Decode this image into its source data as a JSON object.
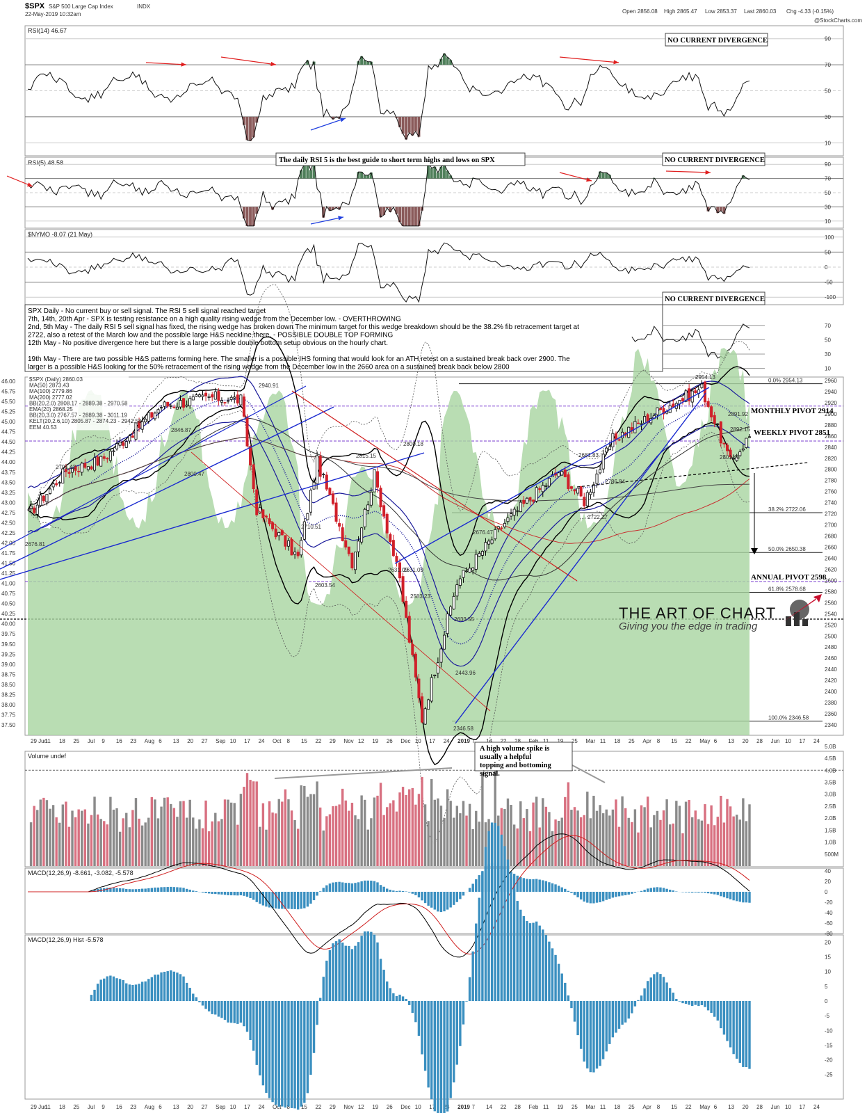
{
  "header": {
    "symbol": "$SPX",
    "name": "S&P 500 Large Cap Index",
    "exchange": "INDX",
    "datetime": "22-May-2019 10:32am",
    "open": "Open 2856.08",
    "high": "High 2865.47",
    "low": "Low 2853.37",
    "last": "Last 2860.03",
    "chg": "Chg -4.33 (-0.15%)",
    "watermark": "@StockCharts.com"
  },
  "date_axis": {
    "labels": [
      "29 Jun",
      "11",
      "18",
      "25",
      "Jul",
      "9",
      "16",
      "23",
      "Aug",
      "6",
      "13",
      "20",
      "27",
      "Sep",
      "10",
      "17",
      "24",
      "Oct",
      "8",
      "15",
      "22",
      "29",
      "Nov",
      "12",
      "19",
      "26",
      "Dec",
      "10",
      "17",
      "24",
      "2019",
      "7",
      "14",
      "22",
      "28",
      "Feb",
      "11",
      "19",
      "25",
      "Mar",
      "11",
      "18",
      "25",
      "Apr",
      "8",
      "15",
      "22",
      "May",
      "6",
      "13",
      "20",
      "28",
      "Jun",
      "10",
      "17",
      "24"
    ]
  },
  "annotations": {
    "no_div_1": "NO CURRENT DIVERGENCE",
    "no_div_2": "NO CURRENT DIVERGENCE",
    "no_div_3": "NO CURRENT DIVERGENCE",
    "rsi5_guide": "The daily RSI 5 is the best guide to short term highs and lows on SPX",
    "monthly_pivot": "MONTHLY PIVOT 2914",
    "weekly_pivot": "WEEKLY PIVOT 2851",
    "annual_pivot": "ANNUAL PIVOT 2598",
    "volume_note": "A high volume spike is usually a helpful topping and bottoming signal.",
    "logo_title": "THE ART OF CHART",
    "logo_tag": "Giving you the edge in trading"
  },
  "commentary": [
    "SPX Daily - No current buy or sell signal. The RSI 5 sell signal reached target",
    "7th, 14th, 20th Apr - SPX is testing resistance on a high quality rising wedge from the December low. - OVERTHROWING",
    "2nd, 5th May - The daily RSI 5 sell signal has fixed, the rising wedge has broken down The minimum target for this wedge breakdown should be the 38.2% fib retracement target at",
    "2722, also a retest of the March low and the possible large H&S neckline there. - POSSIBLE DOUBLE TOP FORMING",
    "12th May - No positive divergence here but there is a large possible double bottom setup obvious on the hourly chart.",
    "",
    "19th May - There are two possible H&S patterns forming here. The smaller is a possible IHS forming that would look for an ATH retest on a sustained break back over 2900. The",
    "larger is a possible H&S looking for the 50% retracement of the rising wedge from the December low in the 2660 area on a sustained break back below 2800"
  ],
  "panels": {
    "rsi14": {
      "label": "RSI(14) 46.67",
      "ticks": [
        "90",
        "70",
        "50",
        "30",
        "10"
      ]
    },
    "rsi5": {
      "label": "RSI(5) 48.58",
      "ticks": [
        "90",
        "70",
        "50",
        "30",
        "10"
      ]
    },
    "nymo": {
      "label": "$NYMO -8.07 (21 May)",
      "ticks": [
        "100",
        "50",
        "0",
        "-50",
        "-100"
      ]
    },
    "rsi_inset": {
      "ticks": [
        "70",
        "50",
        "30",
        "10"
      ]
    },
    "price": {
      "legend": [
        "$SPX (Daily) 2860.03",
        "MA(50) 2873.43",
        "MA(100) 2779.86",
        "MA(200) 2777.02",
        "BB(20,2.0) 2808.17 - 2889.38 - 2970.58",
        "EMA(20) 2868.25",
        "BB(20,3.0) 2767.57 - 2889.38 - 3011.19",
        "KELT(20,2.6,10) 2805.87 - 2874.23 - 2942.58",
        "EEM 40.53"
      ],
      "right_ticks": [
        "2960",
        "2940",
        "2920",
        "2900",
        "2880",
        "2860",
        "2840",
        "2820",
        "2800",
        "2780",
        "2760",
        "2740",
        "2720",
        "2700",
        "2680",
        "2660",
        "2640",
        "2620",
        "2600",
        "2580",
        "2560",
        "2540",
        "2520",
        "2500",
        "2480",
        "2460",
        "2440",
        "2420",
        "2400",
        "2380",
        "2360",
        "2340"
      ],
      "left_ticks": [
        "46.00",
        "45.75",
        "45.50",
        "45.25",
        "45.00",
        "44.75",
        "44.50",
        "44.25",
        "44.00",
        "43.75",
        "43.50",
        "43.25",
        "43.00",
        "42.75",
        "42.50",
        "42.25",
        "42.00",
        "41.75",
        "41.50",
        "41.25",
        "41.00",
        "40.75",
        "40.50",
        "40.25",
        "40.00",
        "39.75",
        "39.50",
        "39.25",
        "39.00",
        "38.75",
        "38.50",
        "38.25",
        "38.00",
        "37.75",
        "37.50"
      ],
      "fib": [
        "0.0% 2954.13",
        "38.2% 2722.06",
        "50.0% 2650.38",
        "61.8% 2578.68",
        "100.0% 2346.58"
      ],
      "price_labels": [
        "2954.13",
        "2940.91",
        "2891.92",
        "2846.87",
        "2801.43",
        "2791.42",
        "2800.47",
        "2631.09",
        "2710.51",
        "2603.54",
        "2583.23",
        "2443.96",
        "2346.58",
        "2633.55",
        "2631.09",
        "2800.18",
        "2815.15",
        "2676.47",
        "2722.27",
        "2892.15",
        "2786.84",
        "2681.83",
        "2676.81"
      ]
    },
    "volume": {
      "label": "Volume undef",
      "ticks": [
        "5.0B",
        "4.5B",
        "4.0B",
        "3.5B",
        "3.0B",
        "2.5B",
        "2.0B",
        "1.5B",
        "1.0B",
        "500M"
      ]
    },
    "macd": {
      "label": "MACD(12,26,9) -8.661, -3.082, -5.578",
      "ticks": [
        "40",
        "20",
        "0",
        "-20",
        "-40",
        "-60",
        "-80"
      ]
    },
    "hist": {
      "label": "MACD(12,26,9) Hist -5.578",
      "ticks": [
        "20",
        "15",
        "10",
        "5",
        "0",
        "-5",
        "-10",
        "-15",
        "-20",
        "-25"
      ]
    }
  },
  "chart_data": {
    "type": "line",
    "title": "$SPX S&P 500 Large Cap Index INDX (Daily)",
    "x": [
      "2018-06-29",
      "2018-07-16",
      "2018-08-01",
      "2018-08-29",
      "2018-09-21",
      "2018-10-03",
      "2018-10-11",
      "2018-10-29",
      "2018-11-07",
      "2018-11-23",
      "2018-12-03",
      "2018-12-14",
      "2018-12-24",
      "2019-01-10",
      "2019-01-31",
      "2019-02-25",
      "2019-03-08",
      "2019-03-21",
      "2019-04-12",
      "2019-04-30",
      "2019-05-13",
      "2019-05-22"
    ],
    "series": [
      {
        "name": "$SPX (Daily)",
        "values": [
          2718,
          2798,
          2816,
          2914,
          2930,
          2925,
          2728,
          2641,
          2814,
          2633,
          2790,
          2600,
          2351,
          2596,
          2704,
          2796,
          2743,
          2854,
          2907,
          2946,
          2812,
          2860
        ]
      }
    ],
    "ylim": [
      2330,
      2975
    ],
    "fib_levels": {
      "0.0%": 2954.13,
      "38.2%": 2722.06,
      "50.0%": 2650.38,
      "61.8%": 2578.68,
      "100.0%": 2346.58
    },
    "pivots": {
      "monthly": 2914,
      "weekly": 2851,
      "annual": 2598
    }
  }
}
